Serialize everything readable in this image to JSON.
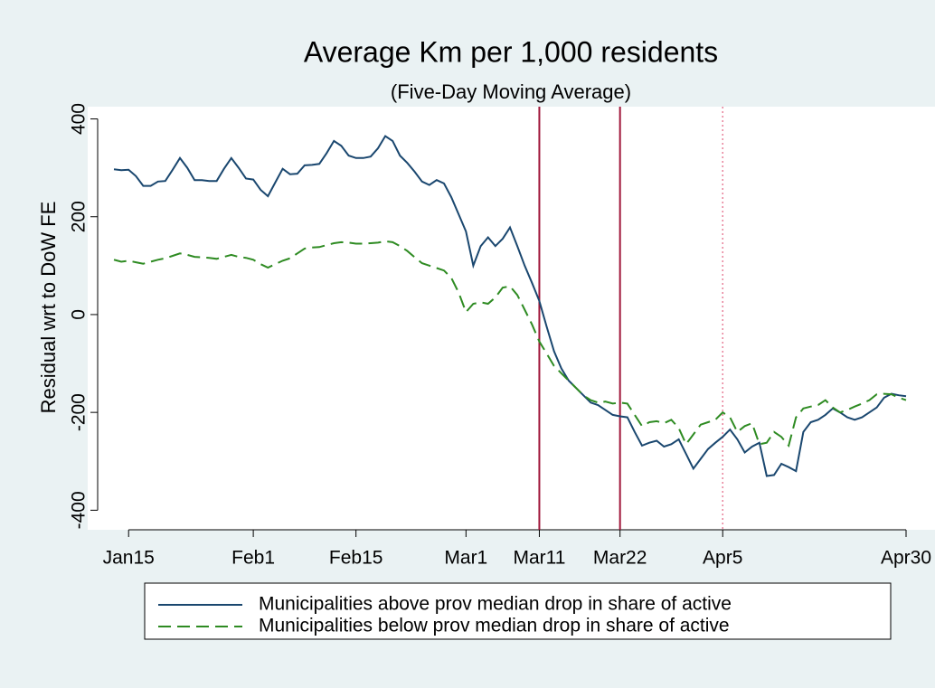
{
  "chart_data": {
    "type": "line",
    "title": "Average Km per 1,000 residents",
    "subtitle": "(Five-Day Moving Average)",
    "y_label": "Residual wrt to DoW FE",
    "categories": [
      null,
      null,
      "Jan15",
      null,
      null,
      null,
      null,
      null,
      null,
      null,
      null,
      null,
      null,
      null,
      null,
      null,
      null,
      null,
      null,
      "Feb1",
      null,
      null,
      null,
      null,
      null,
      null,
      null,
      null,
      null,
      null,
      null,
      null,
      null,
      "Feb15",
      null,
      null,
      null,
      null,
      null,
      null,
      null,
      null,
      null,
      null,
      null,
      null,
      null,
      null,
      "Mar1",
      null,
      null,
      null,
      null,
      null,
      null,
      null,
      null,
      null,
      "Mar11",
      null,
      null,
      null,
      null,
      null,
      null,
      null,
      null,
      null,
      null,
      "Mar22",
      null,
      null,
      null,
      null,
      null,
      null,
      null,
      null,
      null,
      null,
      null,
      null,
      null,
      "Apr5",
      null,
      null,
      null,
      null,
      null,
      null,
      null,
      null,
      null,
      null,
      null,
      null,
      null,
      null,
      null,
      null,
      null,
      null,
      null,
      null,
      null,
      null,
      null,
      null,
      "Apr30"
    ],
    "series": [
      {
        "name": "Municipalities above prov median drop in share of active",
        "color": "#1a476f",
        "dash": "solid",
        "values": [
          297,
          295,
          296,
          283,
          263,
          263,
          272,
          273,
          296,
          320,
          300,
          275,
          275,
          273,
          273,
          298,
          320,
          300,
          278,
          276,
          255,
          242,
          270,
          298,
          287,
          288,
          305,
          306,
          308,
          330,
          355,
          345,
          325,
          320,
          320,
          323,
          340,
          365,
          355,
          325,
          310,
          292,
          272,
          265,
          275,
          268,
          240,
          205,
          170,
          100,
          140,
          158,
          140,
          155,
          178,
          140,
          100,
          65,
          28,
          -25,
          -75,
          -110,
          -135,
          -150,
          -165,
          -180,
          -185,
          -195,
          -205,
          -208,
          -210,
          -240,
          -268,
          -262,
          -258,
          -270,
          -265,
          -255,
          -285,
          -315,
          -295,
          -275,
          -262,
          -250,
          -235,
          -255,
          -282,
          -270,
          -262,
          -330,
          -328,
          -305,
          -312,
          -320,
          -240,
          -220,
          -215,
          -205,
          -192,
          -200,
          -210,
          -215,
          -210,
          -200,
          -190,
          -170,
          -162,
          -165,
          -167
        ]
      },
      {
        "name": "Municipalities below prov median drop in share of active",
        "color": "#2e8b22",
        "dash": "dashed",
        "values": [
          112,
          108,
          110,
          107,
          104,
          108,
          112,
          115,
          120,
          125,
          122,
          118,
          117,
          116,
          114,
          118,
          122,
          118,
          116,
          112,
          103,
          96,
          103,
          110,
          115,
          125,
          135,
          137,
          138,
          142,
          146,
          148,
          147,
          145,
          145,
          146,
          147,
          150,
          148,
          140,
          130,
          117,
          105,
          100,
          95,
          90,
          75,
          45,
          5,
          22,
          25,
          22,
          35,
          55,
          58,
          40,
          10,
          -20,
          -55,
          -80,
          -105,
          -120,
          -135,
          -150,
          -165,
          -175,
          -180,
          -178,
          -182,
          -180,
          -182,
          -205,
          -228,
          -220,
          -218,
          -222,
          -215,
          -232,
          -265,
          -245,
          -225,
          -220,
          -215,
          -200,
          -210,
          -240,
          -228,
          -222,
          -265,
          -262,
          -240,
          -250,
          -268,
          -210,
          -192,
          -188,
          -185,
          -175,
          -190,
          -200,
          -195,
          -188,
          -182,
          -175,
          -163,
          -162,
          -163,
          -170,
          -175
        ]
      }
    ],
    "ylim": [
      -440,
      425
    ],
    "yticks": [
      -400,
      -200,
      0,
      200,
      400
    ],
    "grid": false,
    "vlines": [
      {
        "at": "Mar11",
        "color": "#a0163a",
        "style": "solid"
      },
      {
        "at": "Mar22",
        "color": "#a0163a",
        "style": "solid"
      },
      {
        "at": "Apr5",
        "color": "#e8809a",
        "style": "dotted"
      }
    ],
    "legend": "bottom"
  }
}
